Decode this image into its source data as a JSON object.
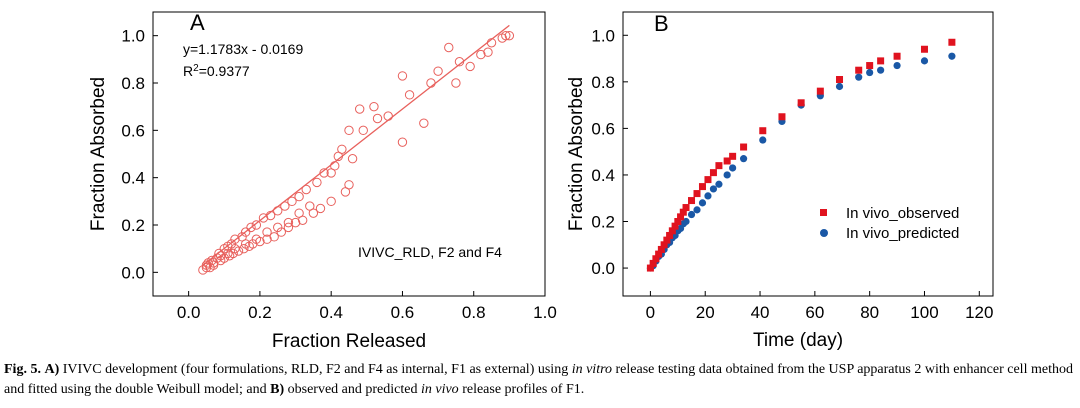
{
  "chart_data": [
    {
      "type": "scatter",
      "panel_label": "A",
      "xlabel": "Fraction Released",
      "ylabel": "Fraction Absorbed",
      "xlim": [
        -0.1,
        1.0
      ],
      "ylim": [
        -0.1,
        1.1
      ],
      "xticks": [
        "0.0",
        "0.2",
        "0.4",
        "0.6",
        "0.8",
        "1.0"
      ],
      "yticks": [
        "0.0",
        "0.2",
        "0.4",
        "0.6",
        "0.8",
        "1.0"
      ],
      "equation_text": "y=1.1783x - 0.0169",
      "r2_prefix": "R",
      "r2_sup": "2",
      "r2_value": "=0.9377",
      "annotation": "IVIVC_RLD, F2 and F4",
      "fit_line": {
        "slope": 1.1783,
        "intercept": -0.0169,
        "x_range": [
          0.04,
          0.9
        ]
      },
      "marker": "open-circle",
      "color": "#e8605c",
      "points": [
        [
          0.04,
          0.01
        ],
        [
          0.05,
          0.03
        ],
        [
          0.055,
          0.04
        ],
        [
          0.06,
          0.02
        ],
        [
          0.065,
          0.05
        ],
        [
          0.07,
          0.04
        ],
        [
          0.08,
          0.06
        ],
        [
          0.085,
          0.08
        ],
        [
          0.09,
          0.05
        ],
        [
          0.1,
          0.1
        ],
        [
          0.1,
          0.06
        ],
        [
          0.11,
          0.11
        ],
        [
          0.115,
          0.07
        ],
        [
          0.12,
          0.12
        ],
        [
          0.125,
          0.08
        ],
        [
          0.13,
          0.14
        ],
        [
          0.14,
          0.09
        ],
        [
          0.15,
          0.15
        ],
        [
          0.155,
          0.1
        ],
        [
          0.16,
          0.17
        ],
        [
          0.17,
          0.11
        ],
        [
          0.175,
          0.19
        ],
        [
          0.18,
          0.12
        ],
        [
          0.19,
          0.2
        ],
        [
          0.2,
          0.13
        ],
        [
          0.21,
          0.23
        ],
        [
          0.22,
          0.14
        ],
        [
          0.23,
          0.24
        ],
        [
          0.24,
          0.15
        ],
        [
          0.25,
          0.26
        ],
        [
          0.26,
          0.17
        ],
        [
          0.27,
          0.28
        ],
        [
          0.28,
          0.19
        ],
        [
          0.29,
          0.3
        ],
        [
          0.3,
          0.21
        ],
        [
          0.31,
          0.32
        ],
        [
          0.32,
          0.22
        ],
        [
          0.33,
          0.35
        ],
        [
          0.35,
          0.25
        ],
        [
          0.36,
          0.38
        ],
        [
          0.37,
          0.27
        ],
        [
          0.38,
          0.42
        ],
        [
          0.4,
          0.42
        ],
        [
          0.41,
          0.45
        ],
        [
          0.42,
          0.49
        ],
        [
          0.43,
          0.52
        ],
        [
          0.45,
          0.6
        ],
        [
          0.45,
          0.37
        ],
        [
          0.48,
          0.69
        ],
        [
          0.49,
          0.6
        ],
        [
          0.52,
          0.7
        ],
        [
          0.53,
          0.65
        ],
        [
          0.6,
          0.83
        ],
        [
          0.6,
          0.55
        ],
        [
          0.66,
          0.63
        ],
        [
          0.68,
          0.8
        ],
        [
          0.73,
          0.95
        ],
        [
          0.75,
          0.8
        ],
        [
          0.79,
          0.87
        ],
        [
          0.85,
          0.97
        ],
        [
          0.88,
          0.99
        ],
        [
          0.89,
          1.0
        ],
        [
          0.9,
          1.0
        ],
        [
          0.05,
          0.02
        ],
        [
          0.07,
          0.03
        ],
        [
          0.09,
          0.07
        ],
        [
          0.11,
          0.08
        ],
        [
          0.13,
          0.1
        ],
        [
          0.16,
          0.12
        ],
        [
          0.19,
          0.14
        ],
        [
          0.22,
          0.17
        ],
        [
          0.25,
          0.19
        ],
        [
          0.28,
          0.21
        ],
        [
          0.31,
          0.25
        ],
        [
          0.34,
          0.28
        ],
        [
          0.4,
          0.3
        ],
        [
          0.44,
          0.34
        ],
        [
          0.46,
          0.48
        ],
        [
          0.56,
          0.66
        ],
        [
          0.62,
          0.75
        ],
        [
          0.7,
          0.85
        ],
        [
          0.76,
          0.89
        ],
        [
          0.82,
          0.92
        ],
        [
          0.84,
          0.93
        ]
      ]
    },
    {
      "type": "scatter",
      "panel_label": "B",
      "xlabel": "Time (day)",
      "ylabel": "Fraction Absorbed",
      "xlim": [
        -10,
        125
      ],
      "ylim": [
        -0.12,
        1.1
      ],
      "xticks": [
        "0",
        "20",
        "40",
        "60",
        "80",
        "100",
        "120"
      ],
      "yticks": [
        "0.0",
        "0.2",
        "0.4",
        "0.6",
        "0.8",
        "1.0"
      ],
      "series": [
        {
          "name": "In vivo_observed",
          "color": "#e0131f",
          "marker": "square",
          "x": [
            0,
            1,
            2,
            3,
            4,
            5,
            6,
            7,
            8,
            9,
            10,
            11,
            12,
            13,
            15,
            17,
            19,
            21,
            23,
            25,
            28,
            30,
            34,
            41,
            48,
            55,
            62,
            69,
            76,
            80,
            84,
            90,
            100,
            110
          ],
          "y": [
            0.0,
            0.02,
            0.04,
            0.06,
            0.08,
            0.1,
            0.12,
            0.14,
            0.16,
            0.18,
            0.2,
            0.22,
            0.24,
            0.26,
            0.29,
            0.32,
            0.35,
            0.38,
            0.41,
            0.44,
            0.46,
            0.48,
            0.52,
            0.59,
            0.65,
            0.71,
            0.76,
            0.81,
            0.85,
            0.87,
            0.89,
            0.91,
            0.94,
            0.97
          ]
        },
        {
          "name": "In vivo_predicted",
          "color": "#1a58a6",
          "marker": "circle",
          "x": [
            0,
            1,
            2,
            3,
            4,
            5,
            6,
            7,
            8,
            9,
            10,
            11,
            12,
            13,
            15,
            17,
            19,
            21,
            23,
            25,
            28,
            30,
            34,
            41,
            48,
            55,
            62,
            69,
            76,
            80,
            84,
            90,
            100,
            110
          ],
          "y": [
            0.0,
            0.01,
            0.03,
            0.05,
            0.06,
            0.08,
            0.1,
            0.11,
            0.13,
            0.14,
            0.16,
            0.17,
            0.19,
            0.2,
            0.23,
            0.25,
            0.28,
            0.31,
            0.34,
            0.36,
            0.4,
            0.43,
            0.47,
            0.55,
            0.63,
            0.7,
            0.74,
            0.78,
            0.82,
            0.84,
            0.85,
            0.87,
            0.89,
            0.91
          ]
        }
      ]
    }
  ],
  "caption": {
    "fig_label": "Fig. 5.",
    "part_a_label": "A)",
    "text1": "IVIVC development (four formulations, RLD, F2 and F4 as internal, F1 as external) using",
    "italic1": "in vitro",
    "text2": "release testing data obtained from the USP apparatus 2 with enhancer cell method and fitted using the double Weibull model; and",
    "part_b_label": "B)",
    "text3": "observed and predicted",
    "italic2": "in vivo",
    "text4": "release profiles of F1."
  }
}
